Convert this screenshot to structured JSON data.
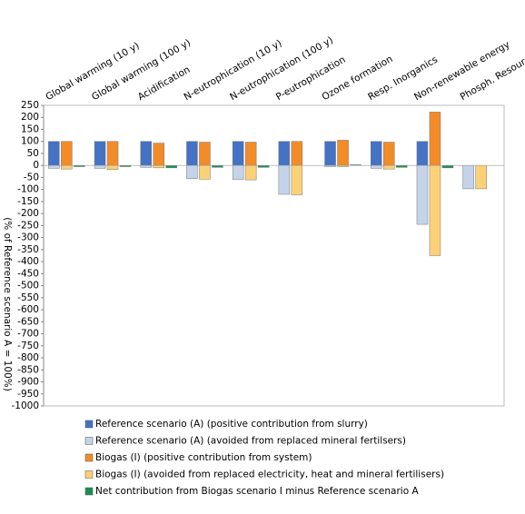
{
  "chart_data": {
    "type": "bar",
    "ylabel": "(% of Reference scenario A = 100%)",
    "categories": [
      "Global warming (10 y)",
      "Global warming (100 y)",
      "Acidification",
      "N-eutrophication (10 y)",
      "N-eutrophication (100 y)",
      "P-eutrophication",
      "Ozone formation",
      "Resp. Inorganics",
      "Non-renewable energy",
      "Phosph. Resources"
    ],
    "series": [
      {
        "name": "Reference scenario (A) (positive contribution from slurry)",
        "color": "#4472c4",
        "slot": 0,
        "values": [
          100,
          100,
          100,
          100,
          100,
          100,
          100,
          100,
          100,
          0
        ]
      },
      {
        "name": "Reference scenario (A) (avoided from replaced mineral fertilsers)",
        "color": "#c5d3ea",
        "slot": 0,
        "values": [
          -12,
          -12,
          -8,
          -55,
          -58,
          -120,
          -5,
          -12,
          -245,
          -97
        ]
      },
      {
        "name": "Biogas (I) (positive contribution from system)",
        "color": "#f28c28",
        "slot": 1,
        "values": [
          100,
          100,
          93,
          97,
          97,
          100,
          105,
          97,
          222,
          0
        ]
      },
      {
        "name": "Biogas (I) (avoided from replaced electricity, heat and mineral fertilisers)",
        "color": "#fbd178",
        "slot": 1,
        "values": [
          -15,
          -17,
          -10,
          -57,
          -60,
          -122,
          -5,
          -15,
          -375,
          -97
        ]
      },
      {
        "name": "Net contribution from Biogas scenario I minus Reference scenario A",
        "color": "#1a8f4f",
        "slot": 2,
        "values": [
          -5,
          -5,
          -10,
          -8,
          -8,
          0,
          3,
          -8,
          -10,
          0
        ]
      }
    ],
    "ylim": [
      -1000,
      250
    ],
    "yticks": [
      250,
      200,
      150,
      100,
      50,
      0,
      -50,
      -100,
      -150,
      -200,
      -250,
      -300,
      -350,
      -400,
      -450,
      -500,
      -550,
      -600,
      -650,
      -700,
      -750,
      -800,
      -850,
      -900,
      -950,
      -1000
    ],
    "grid": false
  }
}
